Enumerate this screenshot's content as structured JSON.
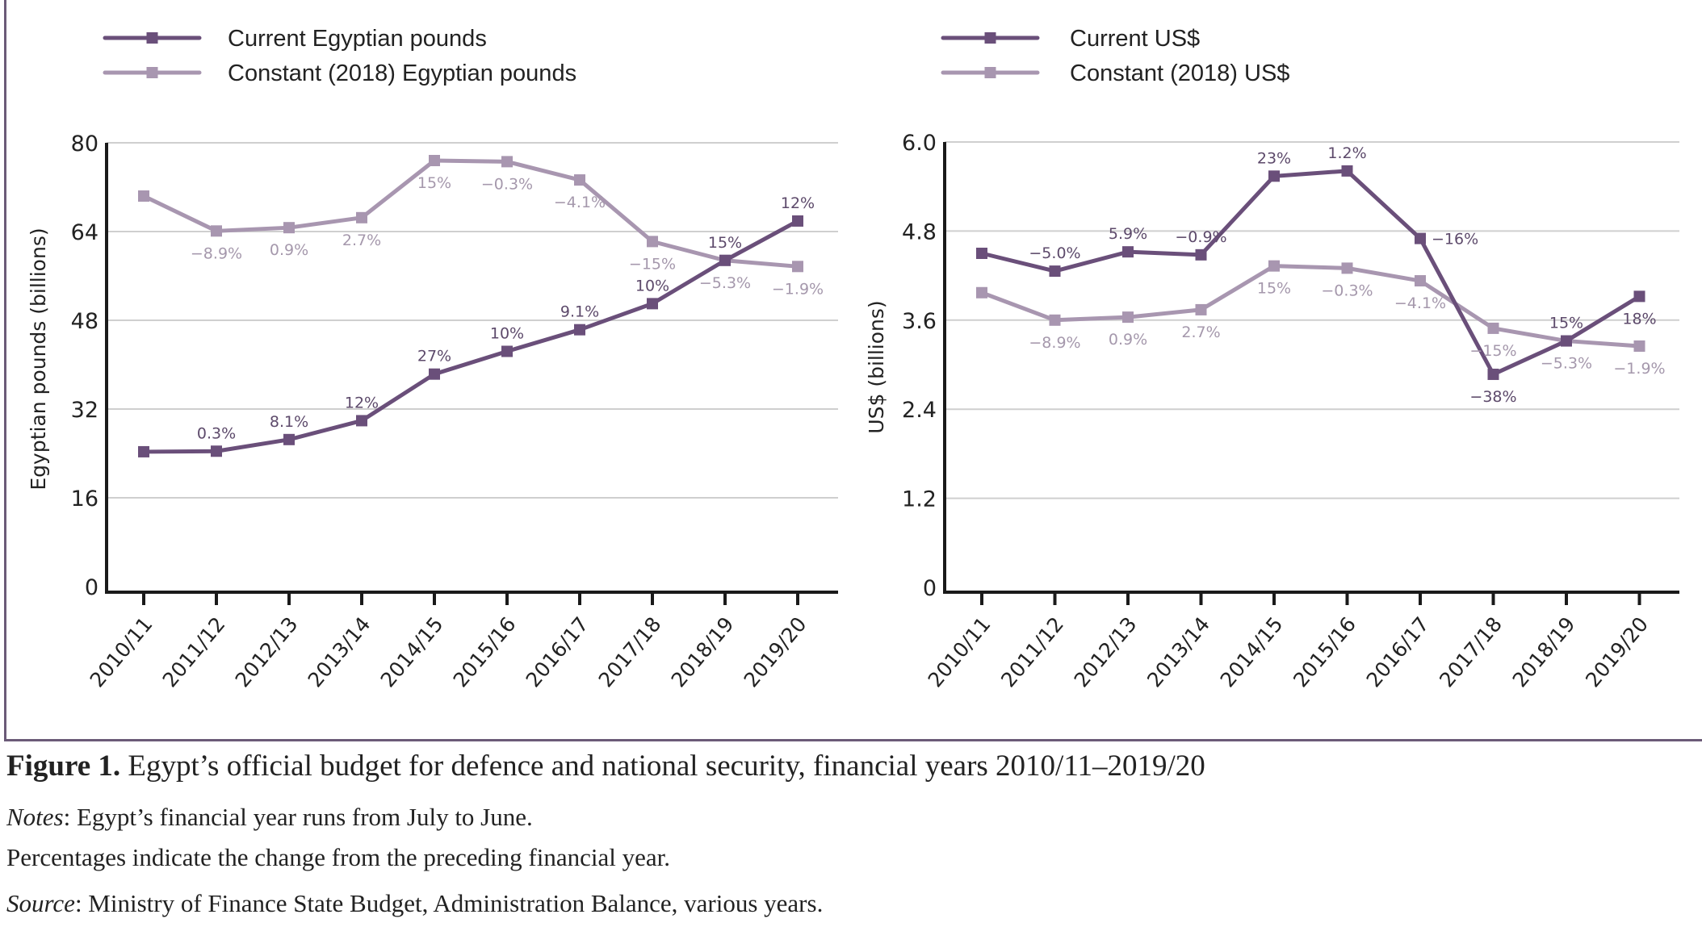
{
  "figure": {
    "label": "Figure 1.",
    "title": " Egypt’s official budget for defence and national security, financial years 2010/11–2019/20",
    "notes_label": "Notes",
    "notes_text": ": Egypt’s financial year runs from July to June.",
    "percent_note": "Percentages indicate the change from the preceding financial year.",
    "source_label": "Source",
    "source_text": ": Ministry of Finance State Budget, Administration Balance, various years."
  },
  "colors": {
    "current": "#6a4f7a",
    "constant": "#a896b0",
    "current_label": "#5d4a6b",
    "constant_label": "#a598ac",
    "grid": "#cfcfcf",
    "axis": "#1a1a1a",
    "frame": "#6b5b78"
  },
  "chart_data": [
    {
      "type": "line",
      "title": "",
      "xlabel": "",
      "ylabel": "Egyptian pounds (billions)",
      "ylim": [
        0,
        80
      ],
      "yticks": [
        0,
        16,
        32,
        48,
        64,
        80
      ],
      "ytick_labels": [
        "0",
        "16",
        "32",
        "48",
        "64",
        "80"
      ],
      "grid": true,
      "legend_position": "top-left",
      "categories": [
        "2010/11",
        "2011/12",
        "2012/13",
        "2013/14",
        "2014/15",
        "2015/16",
        "2016/17",
        "2017/18",
        "2018/19",
        "2019/20"
      ],
      "series": [
        {
          "name": "Current Egyptian pounds",
          "style": "current",
          "values": [
            24.3,
            24.4,
            26.5,
            29.9,
            38.3,
            42.4,
            46.3,
            51.0,
            58.8,
            65.9
          ],
          "labels": [
            "",
            "0.3%",
            "8.1%",
            "12%",
            "27%",
            "10%",
            "9.1%",
            "10%",
            "15%",
            "12%"
          ],
          "label_pos": [
            "above",
            "above",
            "above",
            "above",
            "above",
            "above",
            "above",
            "above",
            "above",
            "above"
          ]
        },
        {
          "name": "Constant (2018) Egyptian pounds",
          "style": "constant",
          "values": [
            70.4,
            64.1,
            64.7,
            66.5,
            76.8,
            76.6,
            73.3,
            62.2,
            58.8,
            57.7
          ],
          "labels": [
            "",
            "-8.9%",
            "0.9%",
            "2.7%",
            "15%",
            "-0.3%",
            "-4.1%",
            "-15%",
            "-5.3%",
            "-1.9%"
          ],
          "label_pos": [
            "below",
            "below",
            "below",
            "below",
            "below",
            "below",
            "below",
            "below",
            "below",
            "below"
          ]
        }
      ]
    },
    {
      "type": "line",
      "title": "",
      "xlabel": "",
      "ylabel": "US$ (billions)",
      "ylim": [
        0,
        6.0
      ],
      "yticks": [
        0,
        1.2,
        2.4,
        3.6,
        4.8,
        6.0
      ],
      "ytick_labels": [
        "0",
        "1.2",
        "2.4",
        "3.6",
        "4.8",
        "6.0"
      ],
      "grid": true,
      "legend_position": "top-left",
      "categories": [
        "2010/11",
        "2011/12",
        "2012/13",
        "2013/14",
        "2014/15",
        "2015/16",
        "2016/17",
        "2017/18",
        "2018/19",
        "2019/20"
      ],
      "series": [
        {
          "name": "Current US$",
          "style": "current",
          "values": [
            4.5,
            4.26,
            4.52,
            4.48,
            5.54,
            5.61,
            4.7,
            2.87,
            3.32,
            3.92
          ],
          "labels": [
            "",
            "-5.0%",
            "5.9%",
            "-0.9%",
            "23%",
            "1.2%",
            "-16%",
            "-38%",
            "15%",
            "18%"
          ],
          "label_pos": [
            "above",
            "above",
            "above",
            "above",
            "above",
            "above",
            "right",
            "below",
            "above",
            "below"
          ]
        },
        {
          "name": "Constant (2018) US$",
          "style": "constant",
          "values": [
            3.97,
            3.6,
            3.64,
            3.74,
            4.33,
            4.3,
            4.13,
            3.49,
            3.32,
            3.25
          ],
          "labels": [
            "",
            "-8.9%",
            "0.9%",
            "2.7%",
            "15%",
            "-0.3%",
            "-4.1%",
            "-15%",
            "-5.3%",
            "-1.9%"
          ],
          "label_pos": [
            "below",
            "below",
            "below",
            "below",
            "below",
            "below",
            "below",
            "below",
            "below",
            "below"
          ]
        }
      ]
    }
  ]
}
